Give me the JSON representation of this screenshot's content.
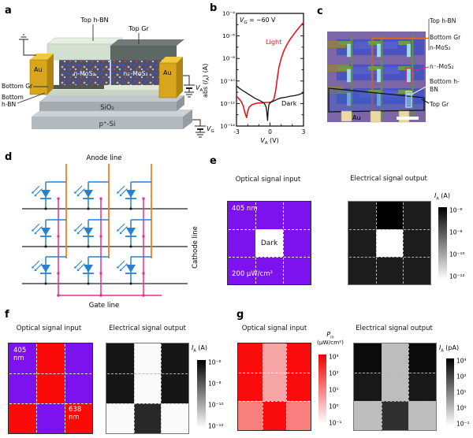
{
  "panel_a": {
    "label": "a",
    "top_hbn": "Top h-BN",
    "top_gr": "Top Gr",
    "au_left": "Au",
    "au_right": "Au",
    "bottom_gr": "Bottom Gr",
    "bottom_hbn_1": "Bottom",
    "bottom_hbn_2": "h-BN",
    "n_mos2": "n-MoS₂",
    "n_neg_mos2": "n⁻-MoS₂",
    "sio2": "SiO₂",
    "p_si": "p⁺-Si",
    "v_a": {
      "var": "V",
      "sub": "A"
    },
    "v_g": {
      "var": "V",
      "sub": "G"
    }
  },
  "panel_b": {
    "label": "b",
    "annotation": {
      "var": "V",
      "sub": "G",
      "rest": " = −60 V"
    },
    "light_label": "Light",
    "dark_label": "Dark",
    "ylabel": {
      "prefix": "abs (",
      "var": "I",
      "sub": "A",
      "suffix": ") (A)"
    },
    "xlabel": {
      "var": "V",
      "sub": "A",
      "suffix": " (V)"
    },
    "yticks": [
      "10⁻⁴",
      "10⁻⁶",
      "10⁻⁸",
      "10⁻¹⁰",
      "10⁻¹²",
      "10⁻¹⁴"
    ],
    "xticks": [
      "-3",
      "0",
      "3"
    ]
  },
  "chart_data": {
    "type": "line",
    "xlabel": "V_A (V)",
    "ylabel": "abs(I_A) (A)",
    "annotation": "V_G = -60 V",
    "x_range": [
      -3,
      3
    ],
    "y_scale": "log10",
    "y_range_log10": [
      -14,
      -4
    ],
    "series": [
      {
        "name": "Light",
        "color": "#e8141c",
        "x": [
          -3,
          -2.8,
          -2.6,
          -2.4,
          -2.25,
          -2.1,
          -2,
          -1.85,
          -1.6,
          -1.3,
          -1,
          -0.7,
          -0.4,
          -0.1,
          0.15,
          0.35,
          0.5,
          0.65,
          0.8,
          1,
          1.25,
          1.5,
          1.8,
          2.1,
          2.4,
          2.7,
          3
        ],
        "log10_abs_IA": [
          -11.35,
          -11.55,
          -11.8,
          -12.2,
          -12.8,
          -13.25,
          -12.7,
          -12.3,
          -12.1,
          -12,
          -11.95,
          -11.95,
          -11.9,
          -11.9,
          -11.85,
          -11.6,
          -10.9,
          -9.8,
          -8.8,
          -8,
          -7.3,
          -6.8,
          -6.3,
          -5.9,
          -5.5,
          -5.15,
          -4.8
        ]
      },
      {
        "name": "Dark",
        "color": "#111111",
        "x": [
          -3,
          -2.6,
          -2.2,
          -1.8,
          -1.4,
          -1,
          -0.7,
          -0.5,
          -0.35,
          -0.28,
          -0.22,
          -0.17,
          -0.1,
          0,
          0.15,
          0.4,
          0.7,
          1,
          1.4,
          1.8,
          2.2,
          2.6,
          3
        ],
        "log10_abs_IA": [
          -10.45,
          -10.75,
          -11,
          -11.25,
          -11.5,
          -11.7,
          -11.85,
          -12,
          -12.3,
          -12.8,
          -13.5,
          -12.7,
          -12.1,
          -11.95,
          -11.85,
          -11.75,
          -11.6,
          -11.5,
          -11.45,
          -11.35,
          -11.3,
          -11.2,
          -11.05
        ]
      }
    ]
  },
  "panel_c": {
    "label": "c",
    "labels": {
      "top_hbn": "Top h-BN",
      "bottom_gr": "Bottom Gr",
      "n_mos2": "n-MoS₂",
      "n_neg_mos2": "n⁻-MoS₂",
      "bottom_hbn": "Bottom h-BN",
      "top_gr": "Top Gr",
      "au": "Au"
    }
  },
  "panel_d": {
    "label": "d",
    "anode_label": "Anode line",
    "cathode_label": "Cathode line",
    "gate_label": "Gate line",
    "colors": {
      "anode": "#f07f1f",
      "cathode": "#222222",
      "gate": "#ec2e8e",
      "photodiode": "#2b7fd0"
    }
  },
  "panel_e": {
    "label": "e",
    "input_title": "Optical signal input",
    "output_title": "Electrical signal output",
    "input": {
      "wavelength_label": "405 nm",
      "center_label": "Dark",
      "power_label": "200 µW/cm²",
      "cells": [
        [
          "#7c12ee",
          "#7c12ee",
          "#7c12ee"
        ],
        [
          "#7c12ee",
          "#ffffff",
          "#7c12ee"
        ],
        [
          "#7c12ee",
          "#7c12ee",
          "#7c12ee"
        ]
      ]
    },
    "output": {
      "cells": [
        [
          "#1c1c1c",
          "#000000",
          "#1c1c1c"
        ],
        [
          "#1c1c1c",
          "#ffffff",
          "#1c1c1c"
        ],
        [
          "#1c1c1c",
          "#1c1c1c",
          "#1c1c1c"
        ]
      ]
    },
    "colorbar": {
      "title": {
        "var": "I",
        "sub": "A",
        "unit": " (A)"
      },
      "ticks": [
        "10⁻⁶",
        "10⁻⁸",
        "10⁻¹⁰",
        "10⁻¹²"
      ],
      "gradient": [
        "#000000",
        "#ffffff"
      ]
    }
  },
  "panel_f": {
    "label": "f",
    "input_title": "Optical signal input",
    "output_title": "Electrical signal output",
    "input": {
      "label_405": "405\nnm",
      "label_638": "638\nnm",
      "cells": [
        [
          "#7c12ee",
          "#fb0a0a",
          "#7c12ee"
        ],
        [
          "#7c12ee",
          "#fb0a0a",
          "#7c12ee"
        ],
        [
          "#fb0a0a",
          "#7c12ee",
          "#fb0a0a"
        ]
      ]
    },
    "output": {
      "cells": [
        [
          "#161616",
          "#fafafa",
          "#161616"
        ],
        [
          "#161616",
          "#fafafa",
          "#161616"
        ],
        [
          "#fafafa",
          "#282828",
          "#fafafa"
        ]
      ]
    },
    "colorbar": {
      "title": {
        "var": "I",
        "sub": "A",
        "unit": " (A)"
      },
      "ticks": [
        "10⁻⁶",
        "10⁻⁸",
        "10⁻¹⁰",
        "10⁻¹²"
      ],
      "gradient": [
        "#000000",
        "#ffffff"
      ]
    }
  },
  "panel_g": {
    "label": "g",
    "input_title": "Optical signal input",
    "output_title": "Electrical signal output",
    "input": {
      "cells": [
        [
          "#fb0c0c",
          "#f6a6a6",
          "#fb0c0c"
        ],
        [
          "#fb0c0c",
          "#f6a6a6",
          "#fb0c0c"
        ],
        [
          "#f97e7e",
          "#fb0c0c",
          "#f97e7e"
        ]
      ]
    },
    "input_colorbar": {
      "title": {
        "var": "P",
        "sub": "in",
        "unit": "(µW/cm²)"
      },
      "ticks": [
        "10³",
        "10²",
        "10¹",
        "10⁰",
        "10⁻¹"
      ],
      "gradient": [
        "#ee0000",
        "#ffffff"
      ]
    },
    "output": {
      "cells": [
        [
          "#0b0b0b",
          "#bdbdbd",
          "#0b0b0b"
        ],
        [
          "#181818",
          "#bdbdbd",
          "#181818"
        ],
        [
          "#bdbdbd",
          "#303030",
          "#bdbdbd"
        ]
      ]
    },
    "output_colorbar": {
      "title": {
        "var": "I",
        "sub": "A",
        "unit": " (pA)"
      },
      "ticks": [
        "10³",
        "10²",
        "10¹",
        "10⁰",
        "10⁻¹"
      ],
      "gradient": [
        "#000000",
        "#ffffff"
      ]
    }
  }
}
